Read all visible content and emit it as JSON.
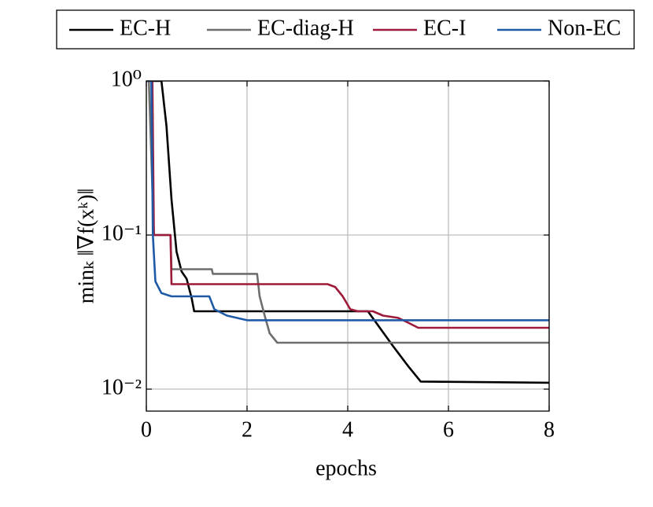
{
  "chart_data": {
    "type": "line",
    "ylabel": "minₖ ‖∇f(xᵏ)‖",
    "xlabel": "epochs",
    "xlim": [
      0,
      8
    ],
    "xticks": [
      0,
      2,
      4,
      6,
      8
    ],
    "ylim": [
      0.0072,
      1
    ],
    "yticks": [
      {
        "value": 0.01,
        "label": "10⁻²"
      },
      {
        "value": 0.1,
        "label": "10⁻¹"
      },
      {
        "value": 1,
        "label": "10⁰"
      }
    ],
    "log_y": true,
    "grid": true,
    "legend": "top",
    "series": [
      {
        "name": "EC-H",
        "color": "#000000",
        "x": [
          0,
          0.3,
          0.4,
          0.5,
          0.6,
          0.7,
          0.8,
          0.9,
          0.95,
          4.4,
          4.9,
          5.2,
          5.45,
          8
        ],
        "values": [
          1,
          1,
          0.51,
          0.17,
          0.078,
          0.058,
          0.052,
          0.039,
          0.032,
          0.032,
          0.019,
          0.0141,
          0.0112,
          0.011
        ]
      },
      {
        "name": "EC-diag-H",
        "color": "#6e6e6e",
        "x": [
          0,
          0.05,
          0.15,
          0.48,
          0.5,
          1.3,
          1.32,
          2.2,
          2.25,
          2.35,
          2.45,
          2.6,
          8
        ],
        "values": [
          1,
          1,
          0.1,
          0.1,
          0.06,
          0.06,
          0.056,
          0.056,
          0.04,
          0.03,
          0.023,
          0.02,
          0.02
        ]
      },
      {
        "name": "EC-I",
        "color": "#9e1a3a",
        "x": [
          0,
          0.12,
          0.15,
          0.48,
          0.5,
          3.6,
          3.75,
          3.9,
          4.05,
          4.2,
          4.5,
          4.7,
          5.0,
          5.2,
          5.4,
          8
        ],
        "values": [
          1,
          1,
          0.1,
          0.1,
          0.048,
          0.048,
          0.046,
          0.04,
          0.033,
          0.032,
          0.032,
          0.03,
          0.029,
          0.027,
          0.025,
          0.025
        ]
      },
      {
        "name": "Non-EC",
        "color": "#1f5aa6",
        "x": [
          0,
          0.1,
          0.13,
          0.18,
          0.3,
          0.5,
          1.25,
          1.35,
          1.6,
          2,
          8
        ],
        "values": [
          1,
          1,
          0.1,
          0.05,
          0.042,
          0.04,
          0.04,
          0.033,
          0.03,
          0.028,
          0.028
        ]
      }
    ]
  }
}
